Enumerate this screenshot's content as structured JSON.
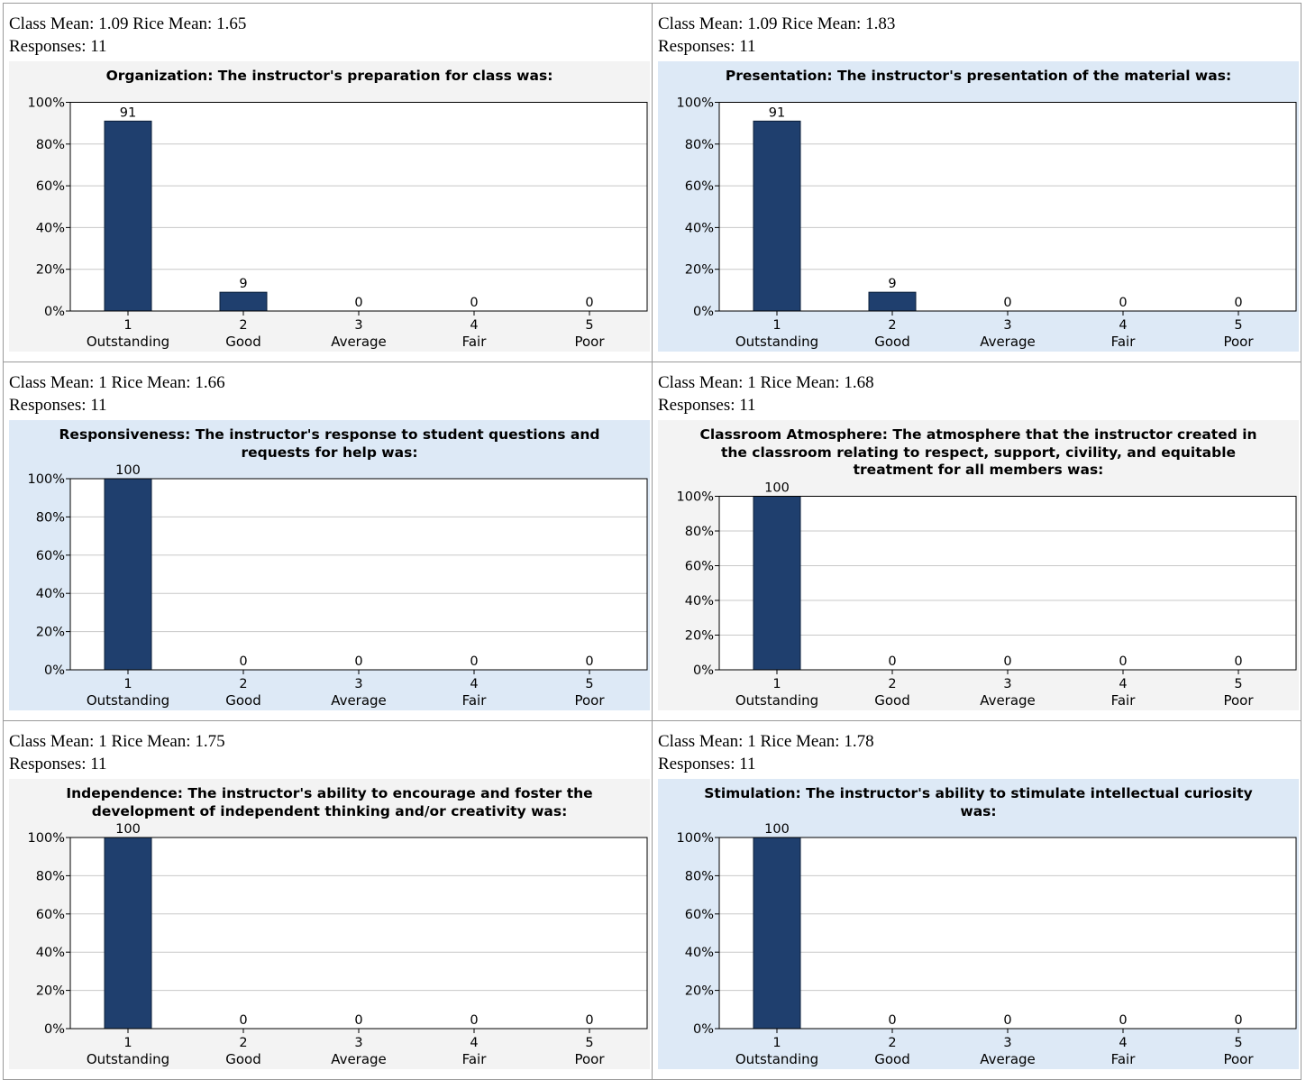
{
  "chart_data": [
    {
      "type": "bar",
      "class_mean_text": "Class Mean: 1.09 Rice Mean: 1.65",
      "responses_text": "Responses: 11",
      "title": "Organization: The instructor's preparation for class was:",
      "categories": [
        {
          "num": "1",
          "name": "Outstanding"
        },
        {
          "num": "2",
          "name": "Good"
        },
        {
          "num": "3",
          "name": "Average"
        },
        {
          "num": "4",
          "name": "Fair"
        },
        {
          "num": "5",
          "name": "Poor"
        }
      ],
      "values": [
        91,
        9,
        0,
        0,
        0
      ],
      "yticks": [
        "100%",
        "80%",
        "60%",
        "40%",
        "20%",
        "0%"
      ],
      "ylim": [
        0,
        100
      ],
      "grid": true,
      "panel_color": "#f3f3f3",
      "bar_color": "#1f3f6e"
    },
    {
      "type": "bar",
      "class_mean_text": "Class Mean: 1.09 Rice Mean: 1.83",
      "responses_text": "Responses: 11",
      "title": "Presentation: The instructor's presentation of the material was:",
      "categories": [
        {
          "num": "1",
          "name": "Outstanding"
        },
        {
          "num": "2",
          "name": "Good"
        },
        {
          "num": "3",
          "name": "Average"
        },
        {
          "num": "4",
          "name": "Fair"
        },
        {
          "num": "5",
          "name": "Poor"
        }
      ],
      "values": [
        91,
        9,
        0,
        0,
        0
      ],
      "yticks": [
        "100%",
        "80%",
        "60%",
        "40%",
        "20%",
        "0%"
      ],
      "ylim": [
        0,
        100
      ],
      "grid": true,
      "panel_color": "#dde9f6",
      "bar_color": "#1f3f6e"
    },
    {
      "type": "bar",
      "class_mean_text": "Class Mean: 1 Rice Mean: 1.66",
      "responses_text": "Responses: 11",
      "title": "Responsiveness: The instructor's response to student questions and requests for help was:",
      "categories": [
        {
          "num": "1",
          "name": "Outstanding"
        },
        {
          "num": "2",
          "name": "Good"
        },
        {
          "num": "3",
          "name": "Average"
        },
        {
          "num": "4",
          "name": "Fair"
        },
        {
          "num": "5",
          "name": "Poor"
        }
      ],
      "values": [
        100,
        0,
        0,
        0,
        0
      ],
      "yticks": [
        "100%",
        "80%",
        "60%",
        "40%",
        "20%",
        "0%"
      ],
      "ylim": [
        0,
        100
      ],
      "grid": true,
      "panel_color": "#dde9f6",
      "bar_color": "#1f3f6e"
    },
    {
      "type": "bar",
      "class_mean_text": "Class Mean: 1 Rice Mean: 1.68",
      "responses_text": "Responses: 11",
      "title": "Classroom Atmosphere: The atmosphere that the instructor created in the classroom relating to respect, support, civility, and equitable treatment for all members was:",
      "categories": [
        {
          "num": "1",
          "name": "Outstanding"
        },
        {
          "num": "2",
          "name": "Good"
        },
        {
          "num": "3",
          "name": "Average"
        },
        {
          "num": "4",
          "name": "Fair"
        },
        {
          "num": "5",
          "name": "Poor"
        }
      ],
      "values": [
        100,
        0,
        0,
        0,
        0
      ],
      "yticks": [
        "100%",
        "80%",
        "60%",
        "40%",
        "20%",
        "0%"
      ],
      "ylim": [
        0,
        100
      ],
      "grid": true,
      "panel_color": "#f3f3f3",
      "bar_color": "#1f3f6e"
    },
    {
      "type": "bar",
      "class_mean_text": "Class Mean: 1 Rice Mean: 1.75",
      "responses_text": "Responses: 11",
      "title": "Independence: The instructor's ability to encourage and foster the development of independent thinking and/or creativity was:",
      "categories": [
        {
          "num": "1",
          "name": "Outstanding"
        },
        {
          "num": "2",
          "name": "Good"
        },
        {
          "num": "3",
          "name": "Average"
        },
        {
          "num": "4",
          "name": "Fair"
        },
        {
          "num": "5",
          "name": "Poor"
        }
      ],
      "values": [
        100,
        0,
        0,
        0,
        0
      ],
      "yticks": [
        "100%",
        "80%",
        "60%",
        "40%",
        "20%",
        "0%"
      ],
      "ylim": [
        0,
        100
      ],
      "grid": true,
      "panel_color": "#f3f3f3",
      "bar_color": "#1f3f6e"
    },
    {
      "type": "bar",
      "class_mean_text": "Class Mean: 1 Rice Mean: 1.78",
      "responses_text": "Responses: 11",
      "title": "Stimulation: The instructor's ability to stimulate intellectual curiosity was:",
      "categories": [
        {
          "num": "1",
          "name": "Outstanding"
        },
        {
          "num": "2",
          "name": "Good"
        },
        {
          "num": "3",
          "name": "Average"
        },
        {
          "num": "4",
          "name": "Fair"
        },
        {
          "num": "5",
          "name": "Poor"
        }
      ],
      "values": [
        100,
        0,
        0,
        0,
        0
      ],
      "yticks": [
        "100%",
        "80%",
        "60%",
        "40%",
        "20%",
        "0%"
      ],
      "ylim": [
        0,
        100
      ],
      "grid": true,
      "panel_color": "#dde9f6",
      "bar_color": "#1f3f6e"
    }
  ]
}
